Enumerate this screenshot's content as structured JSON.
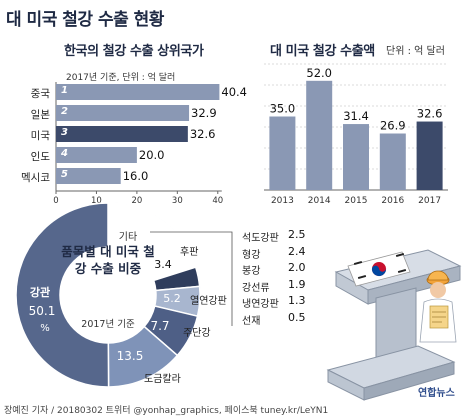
{
  "title": "대 미국 철강 수출 현황",
  "chart_data": [
    {
      "type": "bar",
      "orientation": "horizontal",
      "title": "한국의 철강 수출 상위국가",
      "note": "2017년 기준, 단위 : 억 달러",
      "ranks": [
        "1",
        "2",
        "3",
        "4",
        "5"
      ],
      "categories": [
        "중국",
        "일본",
        "미국",
        "인도",
        "멕시코"
      ],
      "values": [
        40.4,
        32.9,
        32.6,
        20.0,
        16.0
      ],
      "value_labels": [
        "40.4",
        "32.9",
        "32.6",
        "20.0",
        "16.0"
      ],
      "xticks": [
        "0",
        "10",
        "20",
        "30",
        "40"
      ],
      "xlim": [
        0,
        45
      ],
      "highlight": "미국",
      "colors": {
        "bar": "#8a98b4",
        "highlight": "#3c4a6a",
        "axis": "#666666"
      }
    },
    {
      "type": "bar",
      "title": "대 미국 철강 수출액",
      "note": "단위 : 억 달러",
      "categories": [
        "2013",
        "2014",
        "2015",
        "2016",
        "2017"
      ],
      "values": [
        35.0,
        52.0,
        31.4,
        26.9,
        32.6
      ],
      "value_labels": [
        "35.0",
        "52.0",
        "31.4",
        "26.9",
        "32.6"
      ],
      "ylim": [
        0,
        60
      ],
      "grid": true,
      "highlight": "2017",
      "colors": {
        "bar": "#8a98b4",
        "highlight": "#3c4a6a"
      }
    },
    {
      "type": "pie",
      "donut": true,
      "title": "품목별 대 미국 철강 수출 비중",
      "note": "2017년 기준",
      "slices": [
        {
          "label": "기타",
          "value": null,
          "value_label": "",
          "color": "#ffffff"
        },
        {
          "label": "후판",
          "value": 3.4,
          "value_label": "3.4",
          "color": "#2f3d5c"
        },
        {
          "label": "열연강판",
          "value": 5.2,
          "value_label": "5.2",
          "color": "#a8b6cf"
        },
        {
          "label": "주단강",
          "value": 7.7,
          "value_label": "7.7",
          "color": "#4e5f86"
        },
        {
          "label": "도금칼라",
          "value": 13.5,
          "value_label": "13.5",
          "color": "#7f93b8"
        },
        {
          "label": "강관",
          "value": 50.1,
          "value_label": "50.1",
          "unit": "%",
          "color": "#56678c"
        }
      ]
    }
  ],
  "other_items": {
    "items": [
      {
        "name": "석도강판",
        "value": "2.5"
      },
      {
        "name": "형강",
        "value": "2.4"
      },
      {
        "name": "봉강",
        "value": "2.0"
      },
      {
        "name": "강선류",
        "value": "1.9"
      },
      {
        "name": "냉연강판",
        "value": "1.3"
      },
      {
        "name": "선재",
        "value": "0.5"
      }
    ]
  },
  "footer": "장예진 기자 / 20180302 트위터 @yonhap_graphics, 페이스북 tuney.kr/LeYN1",
  "logo": "연합뉴스"
}
